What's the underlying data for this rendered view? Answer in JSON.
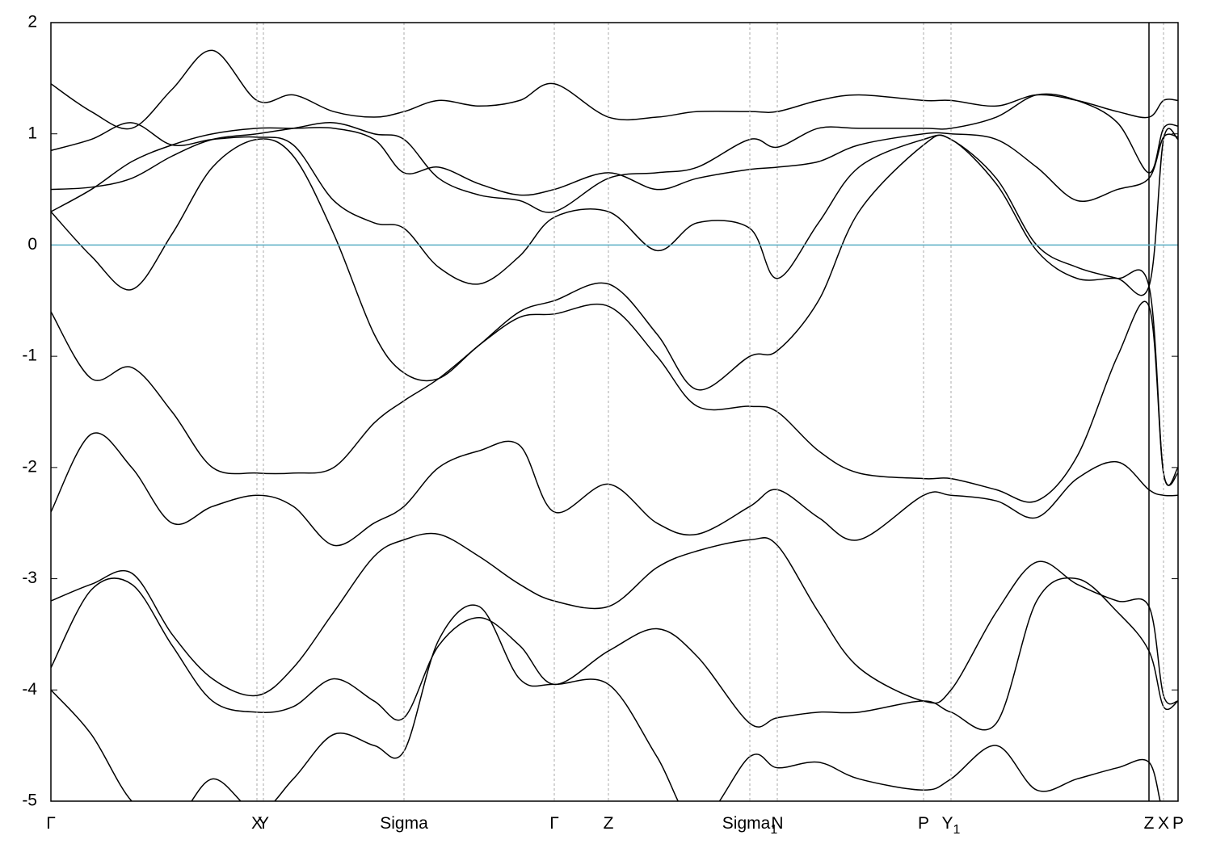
{
  "chart_data": {
    "type": "line",
    "xlim": [
      0,
      13.95
    ],
    "ylim": [
      -5,
      2
    ],
    "yticks": [
      -5,
      -4,
      -3,
      -2,
      -1,
      0,
      1,
      2
    ],
    "xticks": [
      {
        "value": 0,
        "label": "Γ"
      },
      {
        "value": 2.55,
        "label": "X"
      },
      {
        "value": 2.63,
        "label": "Y"
      },
      {
        "value": 4.37,
        "label": "Sigma"
      },
      {
        "value": 6.23,
        "label": "Γ"
      },
      {
        "value": 6.9,
        "label": "Z"
      },
      {
        "value": 8.65,
        "label": "Sigma",
        "subscript": "1"
      },
      {
        "value": 8.99,
        "label": "N"
      },
      {
        "value": 10.8,
        "label": "P"
      },
      {
        "value": 11.14,
        "label": "Y",
        "subscript": "1"
      },
      {
        "value": 13.59,
        "label": "Z"
      },
      {
        "value": 13.77,
        "label": "X"
      },
      {
        "value": 13.95,
        "label": "P"
      }
    ],
    "path_breaks": [
      13.59
    ],
    "fermi_level": 0,
    "fermi_color": "#5aaec4",
    "grid": true,
    "x": [
      0,
      0.5,
      1,
      1.5,
      2,
      2.55,
      3,
      3.5,
      4,
      4.37,
      4.8,
      5.3,
      5.8,
      6.23,
      6.9,
      7.5,
      8,
      8.65,
      8.99,
      9.5,
      10,
      10.8,
      11.14,
      11.7,
      12.2,
      12.7,
      13.2,
      13.59,
      13.77,
      13.95
    ],
    "series": [
      {
        "color": "#000000",
        "values": [
          1.45,
          1.2,
          1.05,
          1.4,
          1.75,
          1.3,
          1.35,
          1.2,
          1.15,
          1.2,
          1.3,
          1.25,
          1.3,
          1.45,
          1.15,
          1.15,
          1.2,
          1.2,
          1.2,
          1.3,
          1.35,
          1.3,
          1.3,
          1.25,
          1.35,
          1.3,
          1.2,
          1.15,
          1.3,
          1.3
        ]
      },
      {
        "color": "#000000",
        "values": [
          0.3,
          -0.1,
          -0.4,
          0.1,
          0.7,
          0.95,
          0.8,
          0.1,
          -0.8,
          -1.15,
          -1.2,
          -0.9,
          -0.65,
          -0.62,
          -0.55,
          -1.0,
          -1.45,
          -1.45,
          -1.5,
          -1.85,
          -2.05,
          -2.1,
          -2.1,
          -2.2,
          -2.3,
          -1.9,
          -1.0,
          -0.55,
          -2.05,
          -2.05
        ]
      },
      {
        "color": "#000000",
        "values": [
          0.85,
          0.95,
          1.1,
          0.9,
          0.95,
          0.97,
          0.9,
          0.4,
          0.2,
          0.15,
          -0.2,
          -0.35,
          -0.1,
          0.25,
          0.3,
          -0.05,
          0.2,
          0.15,
          -0.3,
          0.2,
          0.7,
          0.95,
          0.95,
          0.6,
          0.0,
          -0.2,
          -0.3,
          -0.37,
          0.95,
          0.95
        ]
      },
      {
        "color": "#000000",
        "values": [
          0.5,
          0.52,
          0.6,
          0.8,
          0.95,
          1.0,
          1.05,
          1.1,
          1.0,
          0.95,
          0.6,
          0.45,
          0.4,
          0.3,
          0.6,
          0.65,
          0.7,
          0.95,
          0.88,
          1.05,
          1.05,
          1.05,
          1.05,
          1.15,
          1.35,
          1.3,
          1.1,
          0.65,
          1.05,
          1.07
        ]
      },
      {
        "color": "#000000",
        "values": [
          0.3,
          0.5,
          0.75,
          0.9,
          1.0,
          1.05,
          1.05,
          1.05,
          0.95,
          0.65,
          0.7,
          0.55,
          0.45,
          0.5,
          0.65,
          0.5,
          0.6,
          0.68,
          0.7,
          0.75,
          0.9,
          1.0,
          1.0,
          0.95,
          0.7,
          0.4,
          0.5,
          0.6,
          0.97,
          0.97
        ]
      },
      {
        "color": "#000000",
        "values": [
          -0.6,
          -1.2,
          -1.1,
          -1.5,
          -2.0,
          -2.05,
          -2.05,
          -2.0,
          -1.6,
          -1.4,
          -1.2,
          -0.9,
          -0.6,
          -0.5,
          -0.35,
          -0.8,
          -1.3,
          -1.0,
          -0.95,
          -0.5,
          0.3,
          0.9,
          0.95,
          0.55,
          -0.05,
          -0.3,
          -0.3,
          -0.37,
          -2.05,
          -2.0
        ]
      },
      {
        "color": "#000000",
        "values": [
          -2.4,
          -1.7,
          -2.0,
          -2.5,
          -2.35,
          -2.25,
          -2.35,
          -2.7,
          -2.5,
          -2.35,
          -2.0,
          -1.85,
          -1.8,
          -2.4,
          -2.15,
          -2.5,
          -2.6,
          -2.35,
          -2.2,
          -2.45,
          -2.65,
          -2.25,
          -2.25,
          -2.3,
          -2.45,
          -2.1,
          -1.95,
          -2.2,
          -2.25,
          -2.25
        ]
      },
      {
        "color": "#000000",
        "values": [
          -3.2,
          -3.05,
          -2.95,
          -3.5,
          -3.9,
          -4.05,
          -3.8,
          -3.3,
          -2.8,
          -2.65,
          -2.6,
          -2.8,
          -3.05,
          -3.2,
          -3.25,
          -2.9,
          -2.75,
          -2.65,
          -2.7,
          -3.3,
          -3.8,
          -4.1,
          -4.0,
          -3.3,
          -2.85,
          -3.05,
          -3.2,
          -3.25,
          -4.05,
          -4.1
        ]
      },
      {
        "color": "#000000",
        "values": [
          -3.8,
          -3.1,
          -3.05,
          -3.6,
          -4.1,
          -4.2,
          -4.15,
          -3.9,
          -4.1,
          -4.25,
          -3.6,
          -3.35,
          -3.6,
          -3.95,
          -3.65,
          -3.45,
          -3.7,
          -4.3,
          -4.25,
          -4.2,
          -4.2,
          -4.1,
          -4.2,
          -4.3,
          -3.2,
          -3.0,
          -3.3,
          -3.65,
          -4.15,
          -4.1
        ]
      },
      {
        "color": "#000000",
        "values": [
          -4.0,
          -4.4,
          -5.0,
          -5.2,
          -4.8,
          -5.1,
          -4.8,
          -4.4,
          -4.5,
          -4.55,
          -3.55,
          -3.25,
          -3.9,
          -3.95,
          -3.95,
          -4.6,
          -5.2,
          -4.6,
          -4.7,
          -4.65,
          -4.8,
          -4.9,
          -4.8,
          -4.5,
          -4.9,
          -4.8,
          -4.7,
          -4.65,
          -5.1,
          -5.1
        ]
      }
    ]
  }
}
